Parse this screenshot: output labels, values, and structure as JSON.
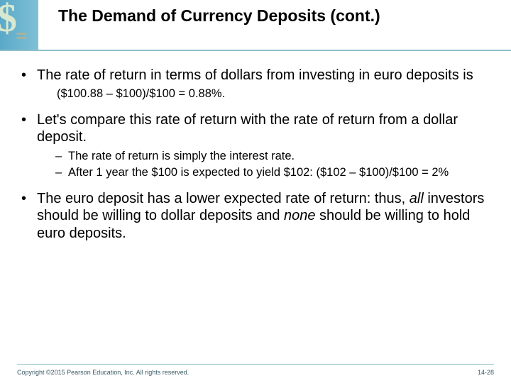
{
  "header": {
    "title": "The Demand of Currency Deposits (cont.)",
    "accent_color": "#8fbecb",
    "icon_bg_start": "#5aa9c8",
    "icon_bg_end": "#7fc0d6"
  },
  "bullets": [
    {
      "text": "The rate of return in terms of dollars from investing in euro deposits is",
      "sub_plain": "($100.88 – $100)/$100 = 0.88%."
    },
    {
      "text": "Let's compare this rate of return with the rate of return from a dollar deposit.",
      "dashes": [
        "The rate of return is simply the interest rate.",
        "After 1 year the $100 is expected to yield $102: ($102 – $100)/$100 = 2%"
      ]
    },
    {
      "html_parts": {
        "pre": "The euro deposit has a lower expected rate of return: thus, ",
        "ital1": "all",
        "mid": " investors should be willing to dollar deposits and ",
        "ital2": "none",
        "post": " should be willing to hold euro deposits."
      }
    }
  ],
  "footer": {
    "copyright": "Copyright ©2015 Pearson Education, Inc. All rights reserved.",
    "page": "14-28"
  }
}
